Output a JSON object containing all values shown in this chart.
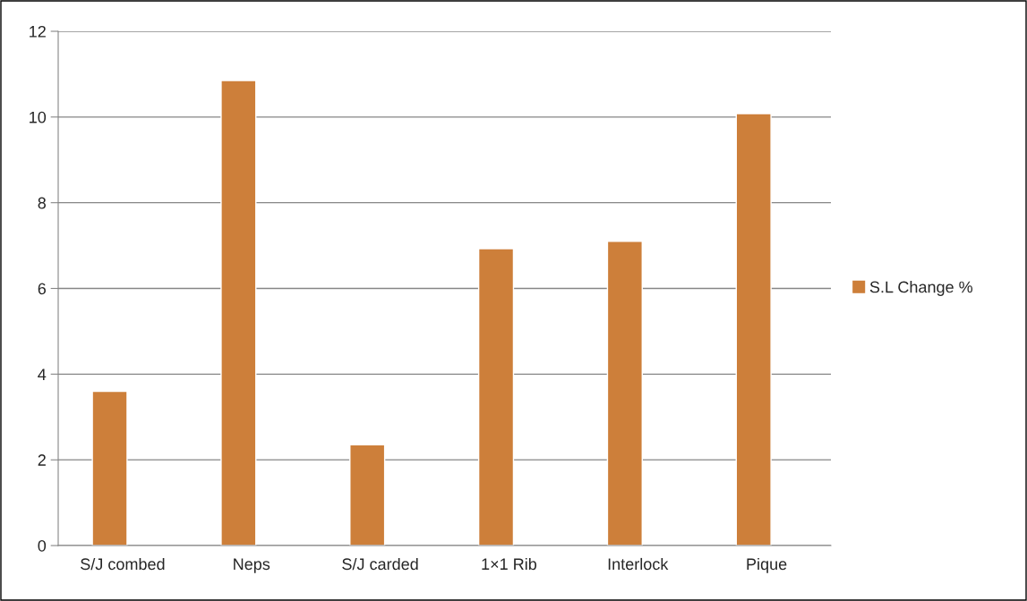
{
  "chart_data": {
    "type": "bar",
    "categories": [
      "S/J combed",
      "Neps",
      "S/J carded",
      "1×1 Rib",
      "Interlock",
      "Pique"
    ],
    "series": [
      {
        "name": "S.L Change %",
        "color": "#cd7f3a",
        "values": [
          3.6,
          10.85,
          2.35,
          6.93,
          7.1,
          10.08
        ]
      }
    ],
    "ylim": [
      0,
      12
    ],
    "yticks": [
      0,
      2,
      4,
      6,
      8,
      10,
      12
    ],
    "grid": "y",
    "legend": "right"
  }
}
